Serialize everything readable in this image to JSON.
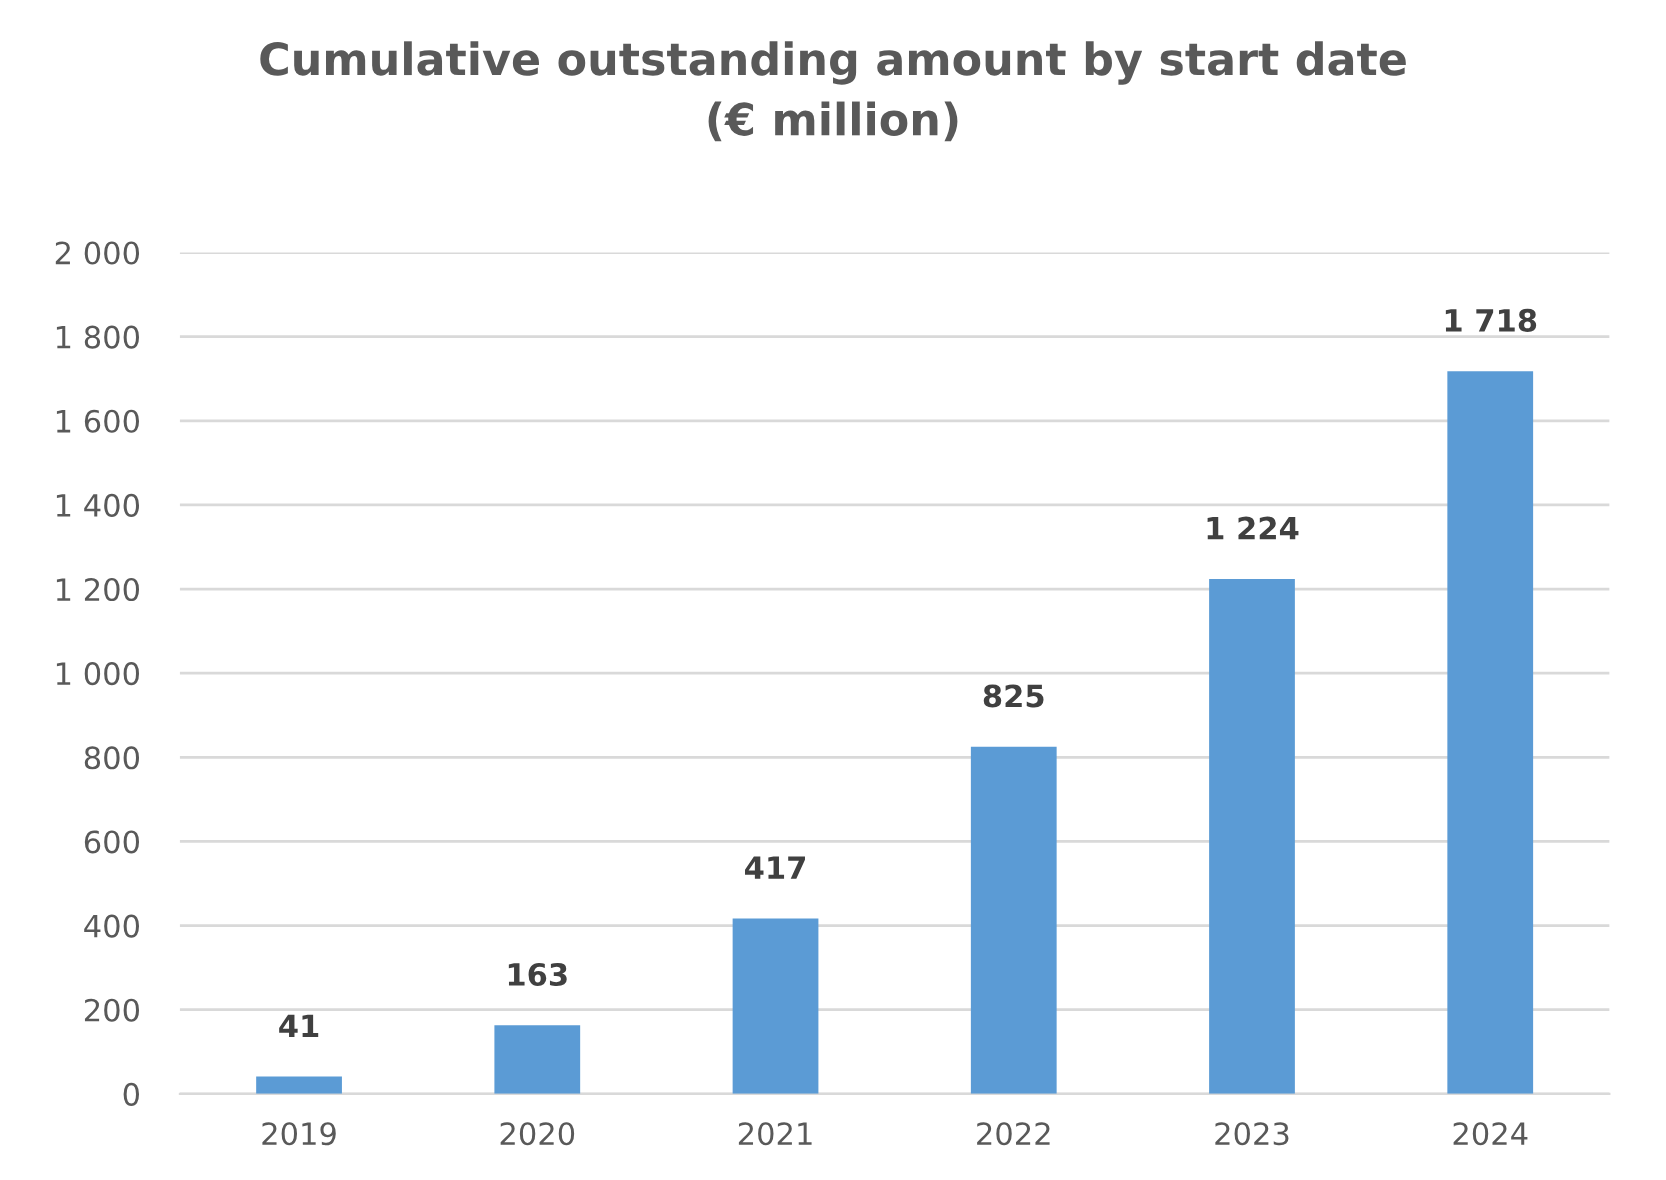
{
  "chart_data": {
    "type": "bar",
    "title": "Cumulative outstanding amount by start date\n(€ million)",
    "categories": [
      "2019",
      "2020",
      "2021",
      "2022",
      "2023",
      "2024"
    ],
    "values": [
      41,
      163,
      417,
      825,
      1224,
      1718
    ],
    "value_labels": [
      "41",
      "163",
      "417",
      "825",
      "1 224",
      "1 718"
    ],
    "color": "#5b9bd5",
    "ylim": [
      0,
      2000
    ],
    "yticks": [
      0,
      200,
      400,
      600,
      800,
      {
        "value": 1000,
        "label": "1 000"
      },
      {
        "value": 1200,
        "label": "1 200"
      },
      {
        "value": 1400,
        "label": "1 400"
      },
      {
        "value": 1600,
        "label": "1 600"
      },
      {
        "value": 1800,
        "label": "1 800"
      },
      {
        "value": 2000,
        "label": "2 000"
      }
    ],
    "grid": "y",
    "legend": false
  }
}
